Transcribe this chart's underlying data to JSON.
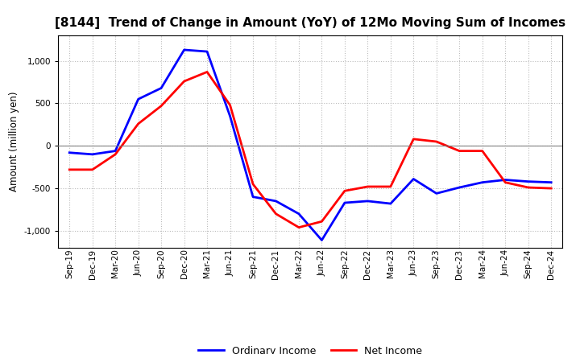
{
  "title": "[8144]  Trend of Change in Amount (YoY) of 12Mo Moving Sum of Incomes",
  "ylabel": "Amount (million yen)",
  "xlabels": [
    "Sep-19",
    "Dec-19",
    "Mar-20",
    "Jun-20",
    "Sep-20",
    "Dec-20",
    "Mar-21",
    "Jun-21",
    "Sep-21",
    "Dec-21",
    "Mar-22",
    "Jun-22",
    "Sep-22",
    "Dec-22",
    "Mar-23",
    "Jun-23",
    "Sep-23",
    "Dec-23",
    "Mar-24",
    "Jun-24",
    "Sep-24",
    "Dec-24"
  ],
  "ordinary_income": [
    -80,
    -100,
    -60,
    550,
    680,
    1130,
    1110,
    350,
    -600,
    -650,
    -800,
    -1110,
    -670,
    -650,
    -680,
    -390,
    -560,
    -490,
    -430,
    -400,
    -420,
    -430
  ],
  "net_income": [
    -280,
    -280,
    -100,
    260,
    470,
    760,
    870,
    480,
    -450,
    -800,
    -960,
    -890,
    -530,
    -480,
    -480,
    80,
    50,
    -60,
    -60,
    -430,
    -490,
    -500
  ],
  "ordinary_color": "#0000ff",
  "net_color": "#ff0000",
  "ylim": [
    -1200,
    1300
  ],
  "yticks": [
    -1000,
    -500,
    0,
    500,
    1000
  ],
  "background_color": "#ffffff",
  "grid_color": "#bbbbbb",
  "title_fontsize": 11,
  "label_fontsize": 8.5,
  "tick_fontsize": 7.5,
  "legend_fontsize": 9,
  "linewidth": 2.0
}
